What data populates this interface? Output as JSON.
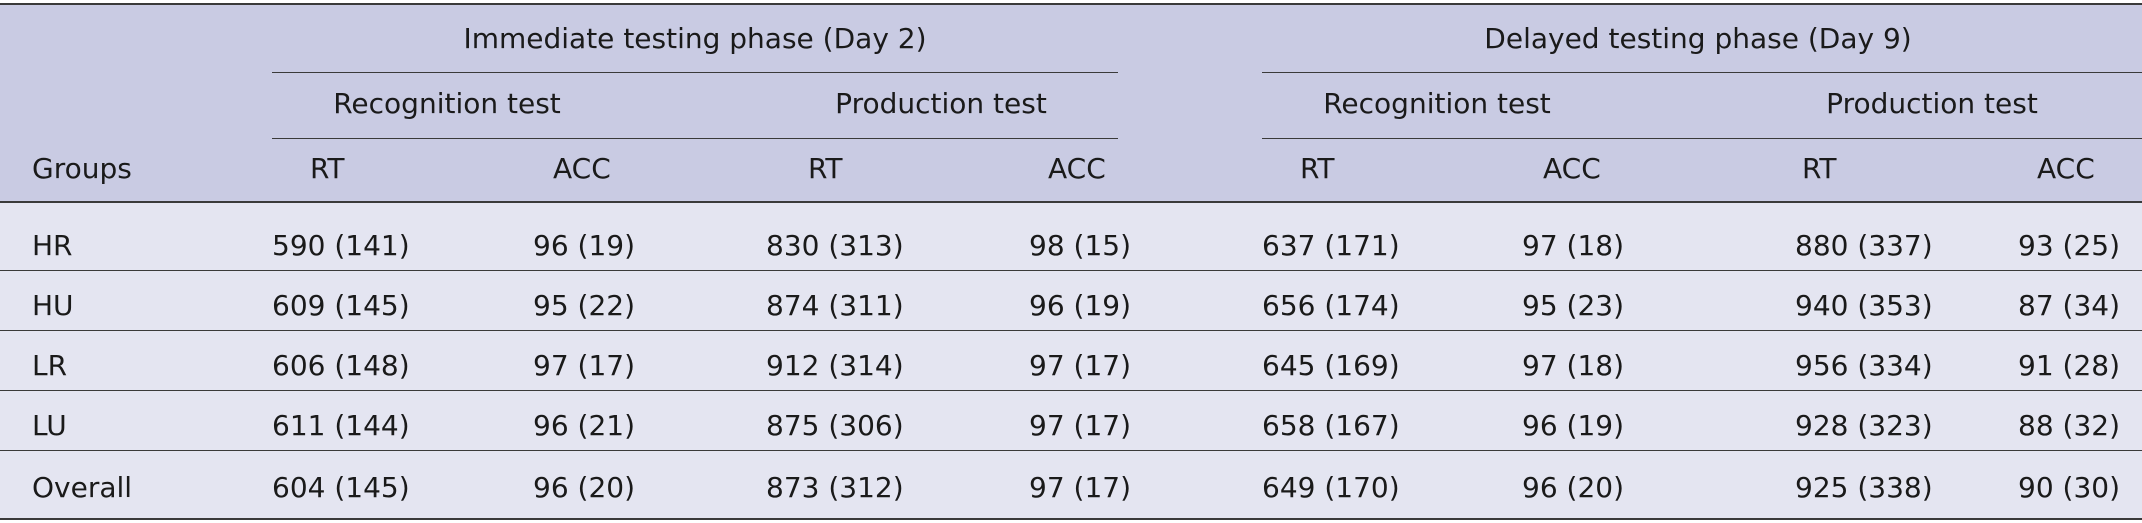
{
  "colors": {
    "header_bg": "#c9cbe3",
    "row_bg": "#e4e5f1",
    "rule": "#3a3a3a"
  },
  "header": {
    "phases": [
      "Immediate testing phase (Day 2)",
      "Delayed testing phase (Day 9)"
    ],
    "tests": [
      "Recognition test",
      "Production test",
      "Recognition test",
      "Production test"
    ],
    "groups_label": "Groups",
    "measures": [
      "RT",
      "ACC",
      "RT",
      "ACC",
      "RT",
      "ACC",
      "RT",
      "ACC"
    ]
  },
  "rows": [
    {
      "group": "HR",
      "values": [
        "590 (141)",
        "96 (19)",
        "830 (313)",
        "98 (15)",
        "637 (171)",
        "97 (18)",
        "880 (337)",
        "93 (25)"
      ]
    },
    {
      "group": "HU",
      "values": [
        "609 (145)",
        "95 (22)",
        "874 (311)",
        "96 (19)",
        "656 (174)",
        "95 (23)",
        "940 (353)",
        "87 (34)"
      ]
    },
    {
      "group": "LR",
      "values": [
        "606 (148)",
        "97 (17)",
        "912 (314)",
        "97 (17)",
        "645 (169)",
        "97 (18)",
        "956 (334)",
        "91 (28)"
      ]
    },
    {
      "group": "LU",
      "values": [
        "611 (144)",
        "96 (21)",
        "875 (306)",
        "97 (17)",
        "658 (167)",
        "96 (19)",
        "928 (323)",
        "88 (32)"
      ]
    },
    {
      "group": "Overall",
      "values": [
        "604 (145)",
        "96 (20)",
        "873 (312)",
        "97 (17)",
        "649 (170)",
        "96 (20)",
        "925 (338)",
        "90 (30)"
      ]
    }
  ]
}
